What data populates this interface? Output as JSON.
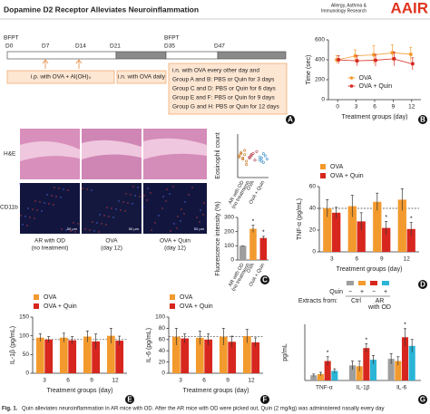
{
  "header": {
    "title": "Dopamine D2 Receptor Alleviates Neuroinflammation",
    "journal": [
      "Allergy, Asthma &",
      "Immunology Research"
    ],
    "logo": "AAIR"
  },
  "timeline": {
    "panel": "A",
    "bfpt": [
      "BFPT",
      "BFPT"
    ],
    "days": [
      "D0",
      "D7",
      "D14",
      "D21",
      "D35",
      "D47"
    ],
    "phases": [
      "i.p. with OVA + Al(OH)₃",
      "i.n. with OVA daily"
    ],
    "protocol": [
      "i.n. with OVA every other day and",
      "Group A and B: PBS or Quin for 3 days",
      "Group C and D: PBS or Quin for 6 days",
      "Group E and F: PBS or Quin for 9 days",
      "Group G and H: PBS or Quin for 12 days"
    ]
  },
  "images": {
    "panel": "C",
    "rows": [
      "H&E",
      "CD11b"
    ],
    "columns": [
      [
        "AR with OD",
        "(no treatment)"
      ],
      [
        "OVA",
        "(day 12)"
      ],
      [
        "OVA + Quin",
        "(day 12)"
      ]
    ],
    "scale_bars": [
      "50 μm",
      "50 μm",
      "50 μm"
    ]
  },
  "chart_data": [
    {
      "type": "line",
      "panel": "B",
      "x": [
        0,
        3,
        6,
        9,
        12
      ],
      "xlim": [
        -1.5,
        13.5
      ],
      "xticks": [
        0,
        3,
        6,
        9,
        12
      ],
      "ylim": [
        0,
        600
      ],
      "yticks": [
        0,
        200,
        400,
        600
      ],
      "x_label": "Treatment groups (day)",
      "y_label": "Time (sec)",
      "legend": "lower right",
      "series": [
        {
          "name": "OVA",
          "color": "#f39a2e",
          "values": [
            400,
            440,
            450,
            470,
            455
          ],
          "errors": [
            40,
            60,
            90,
            80,
            70
          ]
        },
        {
          "name": "OVA + Quin",
          "color": "#d7261e",
          "values": [
            400,
            390,
            395,
            410,
            360
          ],
          "errors": [
            40,
            50,
            60,
            70,
            60
          ]
        }
      ]
    },
    {
      "type": "strip",
      "y_label": "Eosinophil count",
      "categories": [
        [
          "AR with OD",
          "(no treatment)"
        ],
        [
          "OVA"
        ],
        [
          "OVA + Quin"
        ]
      ],
      "ylim": [
        0,
        40
      ],
      "groups": [
        {
          "color": "#c8741e",
          "values": [
            20,
            22,
            18,
            25,
            15,
            19,
            23,
            17,
            21,
            12
          ]
        },
        {
          "color": "#b23a48",
          "values": [
            18,
            20,
            22,
            16,
            24,
            19,
            21
          ]
        },
        {
          "color": "#3a8fc8",
          "values": [
            16,
            18,
            14,
            20,
            17,
            19,
            15,
            22
          ]
        }
      ]
    },
    {
      "type": "bar",
      "y_label": "Fluorescence intensity (%)",
      "categories": [
        [
          "AR with OD",
          "(no treatment)"
        ],
        [
          "OVA"
        ],
        [
          "OVA + Quin"
        ]
      ],
      "values": [
        100,
        220,
        155
      ],
      "errors": [
        0,
        25,
        12
      ],
      "colors": [
        "#9e9e9e",
        "#f39a2e",
        "#d7261e"
      ],
      "ylim": [
        0,
        300
      ],
      "yticks": [
        0,
        100,
        200,
        300
      ],
      "annotations": [
        null,
        "*",
        "*"
      ]
    },
    {
      "type": "bar",
      "panel": "D",
      "categories": [
        "3",
        "6",
        "9",
        "12"
      ],
      "x_label": "Treatment groups (day)",
      "y_label": "TNF-α (pg/mL)",
      "ylim": [
        0,
        60
      ],
      "yticks": [
        0,
        20,
        40,
        60
      ],
      "reference_line": 40,
      "legend": "top left",
      "series": [
        {
          "name": "OVA",
          "color": "#f39a2e",
          "values": [
            40,
            42,
            46,
            48
          ],
          "errors": [
            8,
            10,
            8,
            10
          ]
        },
        {
          "name": "OVA + Quin",
          "color": "#d7261e",
          "values": [
            36,
            28,
            22,
            21
          ],
          "errors": [
            5,
            8,
            6,
            6
          ],
          "annotations": [
            null,
            null,
            "*",
            "*"
          ]
        }
      ]
    },
    {
      "type": "bar",
      "panel": "E",
      "categories": [
        "3",
        "6",
        "9",
        "12"
      ],
      "x_label": "Treatment groups (day)",
      "y_label": "IL-1β (pg/mL)",
      "ylim": [
        0,
        150
      ],
      "yticks": [
        0,
        50,
        100,
        150
      ],
      "reference_line": 90,
      "legend": "top left",
      "series": [
        {
          "name": "OVA",
          "color": "#f39a2e",
          "values": [
            95,
            95,
            98,
            100
          ],
          "errors": [
            10,
            12,
            15,
            20
          ]
        },
        {
          "name": "OVA + Quin",
          "color": "#d7261e",
          "values": [
            90,
            88,
            85,
            87
          ],
          "errors": [
            8,
            10,
            20,
            12
          ]
        }
      ]
    },
    {
      "type": "bar",
      "panel": "F",
      "categories": [
        "3",
        "6",
        "9",
        "12"
      ],
      "x_label": "Treatment groups (day)",
      "y_label": "IL-6 (pg/mL)",
      "ylim": [
        0,
        100
      ],
      "yticks": [
        0,
        20,
        40,
        60,
        80,
        100
      ],
      "reference_line": 65,
      "legend": "top left",
      "series": [
        {
          "name": "OVA",
          "color": "#f39a2e",
          "values": [
            65,
            63,
            65,
            66
          ],
          "errors": [
            15,
            12,
            15,
            12
          ]
        },
        {
          "name": "OVA + Quin",
          "color": "#d7261e",
          "values": [
            62,
            60,
            56,
            55
          ],
          "errors": [
            8,
            10,
            10,
            8
          ]
        }
      ]
    },
    {
      "type": "bar",
      "panel": "G",
      "categories": [
        "TNF-α",
        "IL-1β",
        "IL-6"
      ],
      "y_label": "pg/mL",
      "ylim": [
        0,
        130
      ],
      "legend_table": {
        "row_label": "Quin",
        "signs": [
          "−",
          "+",
          "−",
          "+"
        ],
        "caption": "Extracts from:",
        "groups": [
          [
            "Ctrl"
          ],
          [
            "AR",
            "with OD"
          ]
        ]
      },
      "series": [
        {
          "color": "#9e9e9e",
          "values": [
            12,
            35,
            50
          ],
          "errors": [
            3,
            10,
            12
          ]
        },
        {
          "color": "#f39a2e",
          "values": [
            15,
            33,
            45
          ],
          "errors": [
            4,
            12,
            10
          ]
        },
        {
          "color": "#d7261e",
          "values": [
            45,
            75,
            100
          ],
          "errors": [
            10,
            10,
            20
          ],
          "annotations": [
            "*",
            "*",
            "*"
          ]
        },
        {
          "color": "#2ab4d6",
          "values": [
            22,
            48,
            80
          ],
          "errors": [
            5,
            10,
            15
          ]
        }
      ]
    }
  ],
  "caption": {
    "label": "Fig. 1.",
    "text": "Quin alleviates neuroinflammation in AR mice with OD. After the AR mice with OD were picked out, Quin (2 mg/kg) was administered nasally every day"
  }
}
